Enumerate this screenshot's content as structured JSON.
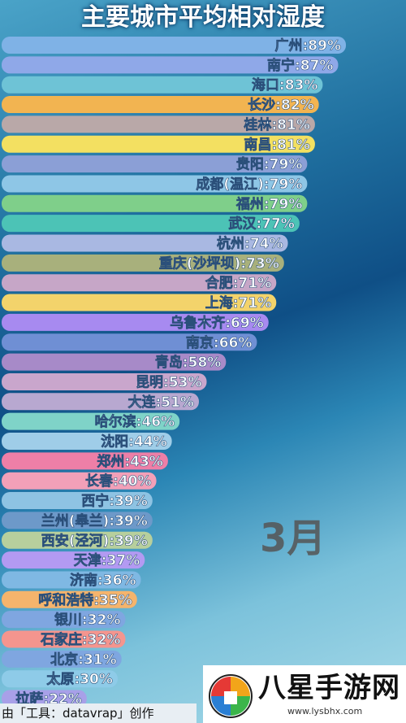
{
  "chart_data": {
    "type": "bar",
    "orientation": "horizontal",
    "title": "主要城市平均相对湿度",
    "unit": "%",
    "categories": [
      "广州",
      "南宁",
      "海口",
      "长沙",
      "桂林",
      "南昌",
      "贵阳",
      "成都(温江)",
      "福州",
      "武汉",
      "杭州",
      "重庆(沙坪坝)",
      "合肥",
      "上海",
      "乌鲁木齐",
      "南京",
      "青岛",
      "昆明",
      "大连",
      "哈尔滨",
      "沈阳",
      "郑州",
      "长春",
      "西宁",
      "兰州(皋兰)",
      "西安(泾河)",
      "天津",
      "济南",
      "呼和浩特",
      "银川",
      "石家庄",
      "北京",
      "太原",
      "拉萨"
    ],
    "values": [
      89,
      87,
      83,
      82,
      81,
      81,
      79,
      79,
      79,
      77,
      74,
      73,
      71,
      71,
      69,
      66,
      58,
      53,
      51,
      46,
      44,
      43,
      40,
      39,
      39,
      39,
      37,
      36,
      35,
      32,
      32,
      31,
      30,
      22
    ],
    "colors": [
      "#7fb2e6",
      "#8fa8e8",
      "#6ec3d6",
      "#f2b451",
      "#b9a8a8",
      "#f3e061",
      "#8b9fd6",
      "#8ec6e6",
      "#7fcf8a",
      "#4cc3b6",
      "#a9b8e2",
      "#a8b07c",
      "#c6a6c7",
      "#f3d36b",
      "#a78af0",
      "#6f8fd4",
      "#a78ac8",
      "#c9a6cc",
      "#b8a8d0",
      "#7fd3c8",
      "#9fcde8",
      "#ee7fa7",
      "#f2a0b8",
      "#8ec3e3",
      "#6d99c9",
      "#b7cf9d",
      "#b39af2",
      "#7fb8e3",
      "#f5b46c",
      "#7fa6e0",
      "#f4958e",
      "#7fa6e0",
      "#8ecbe8",
      "#a8a0e8"
    ],
    "xlim": [
      0,
      100
    ],
    "period": "3月"
  },
  "footer": {
    "credit": "由「工具：datavrap」创作"
  },
  "watermark": {
    "name": "八星手游网",
    "url": "www.lysbhx.com"
  }
}
